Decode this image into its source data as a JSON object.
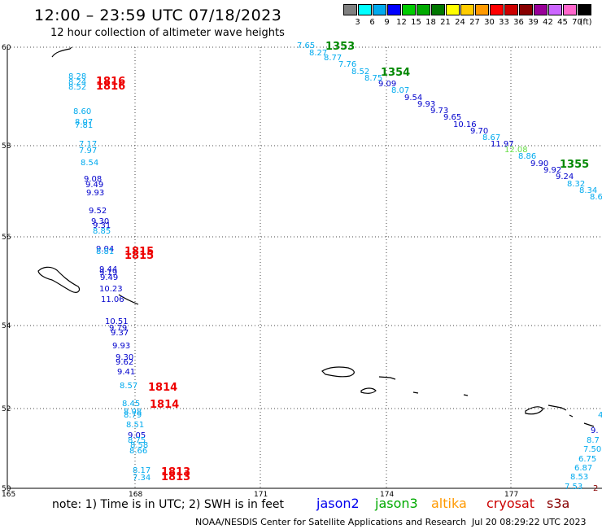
{
  "header": {
    "title": "12:00 – 23:59 UTC 07/18/2023",
    "subtitle": "12 hour collection of altimeter wave heights"
  },
  "color_scale": {
    "unit": "(ft)",
    "bins": [
      {
        "label": "3",
        "color": "#808080"
      },
      {
        "label": "6",
        "color": "#00ffff"
      },
      {
        "label": "9",
        "color": "#00aaee"
      },
      {
        "label": "12",
        "color": "#0000ff"
      },
      {
        "label": "15",
        "color": "#00cc00"
      },
      {
        "label": "18",
        "color": "#00aa00"
      },
      {
        "label": "21",
        "color": "#007700"
      },
      {
        "label": "24",
        "color": "#ffff00"
      },
      {
        "label": "27",
        "color": "#ffcc00"
      },
      {
        "label": "30",
        "color": "#ff9900"
      },
      {
        "label": "33",
        "color": "#ff0000"
      },
      {
        "label": "36",
        "color": "#cc0000"
      },
      {
        "label": "39",
        "color": "#880000"
      },
      {
        "label": "42",
        "color": "#990099"
      },
      {
        "label": "45",
        "color": "#cc66ff"
      },
      {
        "label": "70",
        "color": "#ff66cc"
      },
      {
        "label": "",
        "color": "#000000"
      }
    ]
  },
  "map": {
    "lat_labels": [
      "60",
      "58",
      "56",
      "54",
      "52",
      "50"
    ],
    "lon_labels": [
      "165",
      "168",
      "171",
      "174",
      "177"
    ]
  },
  "tracks": [
    {
      "sat": "jason3",
      "color": "#008800",
      "labels": [
        {
          "text": "1353"
        },
        {
          "text": "1354"
        },
        {
          "text": "1355"
        }
      ]
    },
    {
      "sat": "cryosat",
      "color": "#ee0000",
      "labels": [
        {
          "text": "1816"
        },
        {
          "text": "1815"
        },
        {
          "text": "1814"
        },
        {
          "text": "1814"
        },
        {
          "text": "1813"
        },
        {
          "text": "1813"
        }
      ]
    }
  ],
  "wave_heights": {
    "west_track": [
      {
        "v": "8.28",
        "c": "#00aaee"
      },
      {
        "v": "8.24",
        "c": "#00aaee"
      },
      {
        "v": "8.52",
        "c": "#00aaee"
      },
      {
        "v": "8.60",
        "c": "#00aaee"
      },
      {
        "v": "8.07",
        "c": "#00aaee"
      },
      {
        "v": "7.81",
        "c": "#00aaee"
      },
      {
        "v": "7.17",
        "c": "#00aaee"
      },
      {
        "v": "7.97",
        "c": "#00aaee"
      },
      {
        "v": "8.54",
        "c": "#00aaee"
      },
      {
        "v": "9.08",
        "c": "#0000cc"
      },
      {
        "v": "9.49",
        "c": "#0000cc"
      },
      {
        "v": "9.93",
        "c": "#0000cc"
      },
      {
        "v": "9.52",
        "c": "#0000cc"
      },
      {
        "v": "9.30",
        "c": "#0000cc"
      },
      {
        "v": "9.31",
        "c": "#0000cc"
      },
      {
        "v": "8.85",
        "c": "#00aaee"
      },
      {
        "v": "9.04",
        "c": "#0000cc"
      },
      {
        "v": "8.81",
        "c": "#00aaee"
      },
      {
        "v": "9.44",
        "c": "#0000cc"
      },
      {
        "v": "9.19",
        "c": "#0000cc"
      },
      {
        "v": "9.49",
        "c": "#0000cc"
      },
      {
        "v": "10.23",
        "c": "#0000cc"
      },
      {
        "v": "11.06",
        "c": "#0000cc"
      },
      {
        "v": "10.51",
        "c": "#0000cc"
      },
      {
        "v": "9.79",
        "c": "#0000cc"
      },
      {
        "v": "9.37",
        "c": "#0000cc"
      },
      {
        "v": "9.93",
        "c": "#0000cc"
      },
      {
        "v": "9.30",
        "c": "#0000cc"
      },
      {
        "v": "9.62",
        "c": "#0000cc"
      },
      {
        "v": "9.41",
        "c": "#0000cc"
      },
      {
        "v": "8.57",
        "c": "#00aaee"
      },
      {
        "v": "8.45",
        "c": "#00aaee"
      },
      {
        "v": "8.98",
        "c": "#00aaee"
      },
      {
        "v": "8.79",
        "c": "#00aaee"
      },
      {
        "v": "8.51",
        "c": "#00aaee"
      },
      {
        "v": "9.05",
        "c": "#0000cc"
      },
      {
        "v": "8.75",
        "c": "#00aaee"
      },
      {
        "v": "8.58",
        "c": "#00aaee"
      },
      {
        "v": "8.66",
        "c": "#00aaee"
      },
      {
        "v": "8.17",
        "c": "#00aaee"
      },
      {
        "v": "7.34",
        "c": "#00aaee"
      }
    ],
    "north_track": [
      {
        "v": "7.65",
        "c": "#00aaee"
      },
      {
        "v": "8.27",
        "c": "#00aaee"
      },
      {
        "v": "8.77",
        "c": "#00aaee"
      },
      {
        "v": "7.76",
        "c": "#00aaee"
      },
      {
        "v": "8.52",
        "c": "#00aaee"
      },
      {
        "v": "8.75",
        "c": "#00aaee"
      },
      {
        "v": "9.09",
        "c": "#0000cc"
      },
      {
        "v": "8.07",
        "c": "#00aaee"
      },
      {
        "v": "9.54",
        "c": "#0000cc"
      },
      {
        "v": "9.93",
        "c": "#0000cc"
      },
      {
        "v": "9.73",
        "c": "#0000cc"
      },
      {
        "v": "9.65",
        "c": "#0000cc"
      },
      {
        "v": "10.16",
        "c": "#0000cc"
      },
      {
        "v": "9.70",
        "c": "#0000cc"
      },
      {
        "v": "8.67",
        "c": "#00aaee"
      },
      {
        "v": "11.97",
        "c": "#0000cc"
      },
      {
        "v": "12.08",
        "c": "#66dd44"
      },
      {
        "v": "8.86",
        "c": "#00aaee"
      },
      {
        "v": "9.90",
        "c": "#0000cc"
      },
      {
        "v": "9.92",
        "c": "#0000cc"
      },
      {
        "v": "9.24",
        "c": "#0000cc"
      },
      {
        "v": "8.32",
        "c": "#00aaee"
      },
      {
        "v": "8.34",
        "c": "#00aaee"
      },
      {
        "v": "8.6",
        "c": "#00aaee"
      }
    ],
    "east_track": [
      {
        "v": "9.",
        "c": "#0000cc"
      },
      {
        "v": "8.7",
        "c": "#00aaee"
      },
      {
        "v": "7.50",
        "c": "#00aaee"
      },
      {
        "v": "6.75",
        "c": "#00aaee"
      },
      {
        "v": "6.87",
        "c": "#00aaee"
      },
      {
        "v": "8.53",
        "c": "#00aaee"
      },
      {
        "v": "7.53",
        "c": "#00aaee"
      },
      {
        "v": "2",
        "c": "#880000"
      },
      {
        "v": "4",
        "c": "#00aaee"
      }
    ]
  },
  "footer": {
    "note": "note: 1) Time is in UTC; 2) SWH is in feet",
    "satellites": [
      {
        "name": "jason2",
        "color": "#0000ee"
      },
      {
        "name": "jason3",
        "color": "#00aa00"
      },
      {
        "name": "altika",
        "color": "#ff9900"
      },
      {
        "name": "cryosat",
        "color": "#cc0000"
      },
      {
        "name": "s3a",
        "color": "#880000"
      }
    ],
    "credit": "NOAA/NESDIS Center for Satellite Applications and Research",
    "generated": "Jul 20 08:29:22 UTC 2023"
  }
}
